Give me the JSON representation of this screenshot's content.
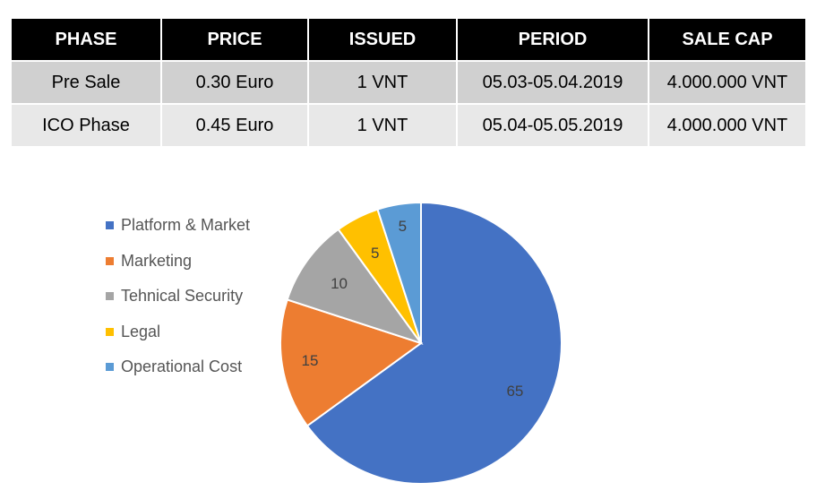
{
  "table": {
    "headers": [
      "PHASE",
      "PRICE",
      "ISSUED",
      "PERIOD",
      "SALE CAP"
    ],
    "rows": [
      [
        "Pre Sale",
        "0.30 Euro",
        "1 VNT",
        "05.03-05.04.2019",
        "4.000.000 VNT"
      ],
      [
        "ICO Phase",
        "0.45 Euro",
        "1 VNT",
        "05.04-05.05.2019",
        "4.000.000 VNT"
      ]
    ]
  },
  "chart_data": {
    "type": "pie",
    "title": "",
    "categories": [
      "Platform & Market",
      "Marketing",
      "Tehnical Security",
      "Legal",
      "Operational Cost"
    ],
    "values": [
      65,
      15,
      10,
      5,
      5
    ],
    "labels": [
      "65",
      "15",
      "10",
      "5",
      "5"
    ],
    "colors": [
      "#4472c4",
      "#ed7d31",
      "#a5a5a5",
      "#ffc000",
      "#5b9bd5"
    ],
    "legend_position": "left",
    "start_angle": "top, clockwise"
  }
}
